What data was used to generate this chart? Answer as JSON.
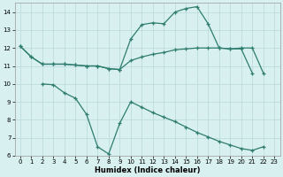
{
  "curve_upper_x": [
    0,
    1,
    2,
    3,
    4,
    5,
    6,
    7,
    8,
    9,
    10,
    11,
    12,
    13,
    14,
    15,
    16,
    17,
    18,
    19,
    20,
    21,
    22
  ],
  "curve_upper_y": [
    12.1,
    11.5,
    11.1,
    11.1,
    11.1,
    11.05,
    11.0,
    11.0,
    10.85,
    10.8,
    12.5,
    13.3,
    13.4,
    13.35,
    14.0,
    14.2,
    14.3,
    13.35,
    12.0,
    11.95,
    12.0,
    12.0,
    10.6
  ],
  "curve_mid_x": [
    0,
    1,
    2,
    3,
    4,
    5,
    6,
    7,
    8,
    9,
    10,
    11,
    12,
    13,
    14,
    15,
    16,
    17,
    18,
    19,
    20,
    21
  ],
  "curve_mid_y": [
    12.1,
    11.5,
    11.1,
    11.1,
    11.1,
    11.05,
    11.0,
    11.0,
    10.85,
    10.8,
    11.3,
    11.5,
    11.65,
    11.75,
    11.9,
    11.95,
    12.0,
    12.0,
    12.0,
    11.95,
    11.95,
    10.6
  ],
  "curve_low_x": [
    2,
    3,
    4,
    5,
    6,
    7,
    8,
    9,
    10,
    11,
    12,
    13,
    14,
    15,
    16,
    17,
    18,
    19,
    20,
    21,
    22
  ],
  "curve_low_y": [
    10.0,
    9.95,
    9.5,
    9.2,
    8.3,
    6.5,
    6.1,
    7.8,
    9.0,
    8.7,
    8.4,
    8.15,
    7.9,
    7.6,
    7.3,
    7.05,
    6.8,
    6.6,
    6.4,
    6.3,
    6.5
  ],
  "color": "#2e7d6e",
  "bg_color": "#d8f0f0",
  "grid_color": "#b8d8d8",
  "xlabel": "Humidex (Indice chaleur)",
  "ylim": [
    6,
    14.5
  ],
  "xlim": [
    -0.5,
    23.5
  ],
  "yticks": [
    6,
    7,
    8,
    9,
    10,
    11,
    12,
    13,
    14
  ],
  "xticks": [
    0,
    1,
    2,
    3,
    4,
    5,
    6,
    7,
    8,
    9,
    10,
    11,
    12,
    13,
    14,
    15,
    16,
    17,
    18,
    19,
    20,
    21,
    22,
    23
  ]
}
